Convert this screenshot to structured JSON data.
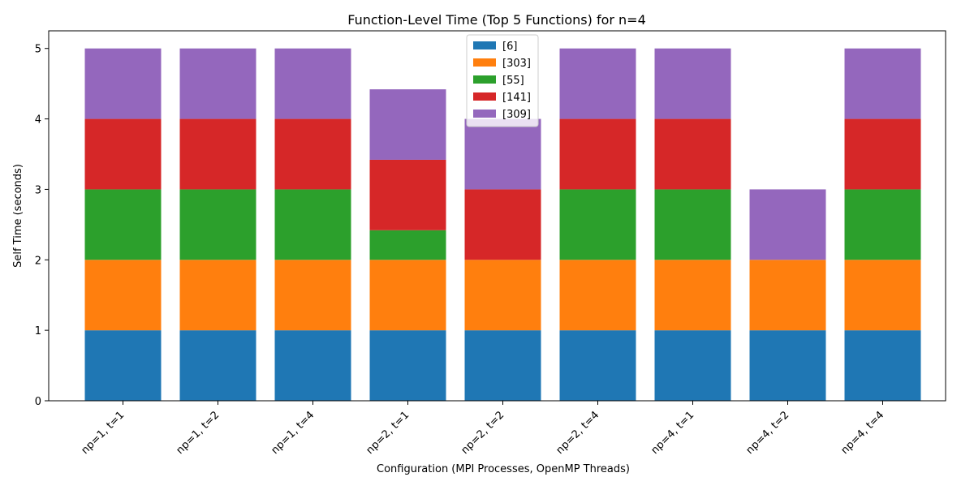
{
  "chart_data": {
    "type": "bar",
    "stacked": true,
    "title": "Function-Level Time (Top 5 Functions) for n=4",
    "xlabel": "Configuration (MPI Processes, OpenMP Threads)",
    "ylabel": "Self Time (seconds)",
    "ylim": [
      0,
      5.25
    ],
    "yticks": [
      "0",
      "1",
      "2",
      "3",
      "4",
      "5"
    ],
    "grid": false,
    "legend_position": "top-center",
    "categories": [
      "np=1, t=1",
      "np=1, t=2",
      "np=1, t=4",
      "np=2, t=1",
      "np=2, t=2",
      "np=2, t=4",
      "np=4, t=1",
      "np=4, t=2",
      "np=4, t=4"
    ],
    "series": [
      {
        "name": "[6]",
        "color": "#1f77b4",
        "values": [
          1,
          1,
          1,
          1,
          1,
          1,
          1,
          1,
          1
        ]
      },
      {
        "name": "[303]",
        "color": "#ff7f0e",
        "values": [
          1,
          1,
          1,
          1,
          1,
          1,
          1,
          1,
          1
        ]
      },
      {
        "name": "[55]",
        "color": "#2ca02c",
        "values": [
          1,
          1,
          1,
          0.42,
          0,
          1,
          1,
          0,
          1
        ]
      },
      {
        "name": "[141]",
        "color": "#d62728",
        "values": [
          1,
          1,
          1,
          1,
          1,
          1,
          1,
          0,
          1
        ]
      },
      {
        "name": "[309]",
        "color": "#9467bd",
        "values": [
          1,
          1,
          1,
          1,
          1,
          1,
          1,
          1,
          1
        ]
      }
    ]
  }
}
